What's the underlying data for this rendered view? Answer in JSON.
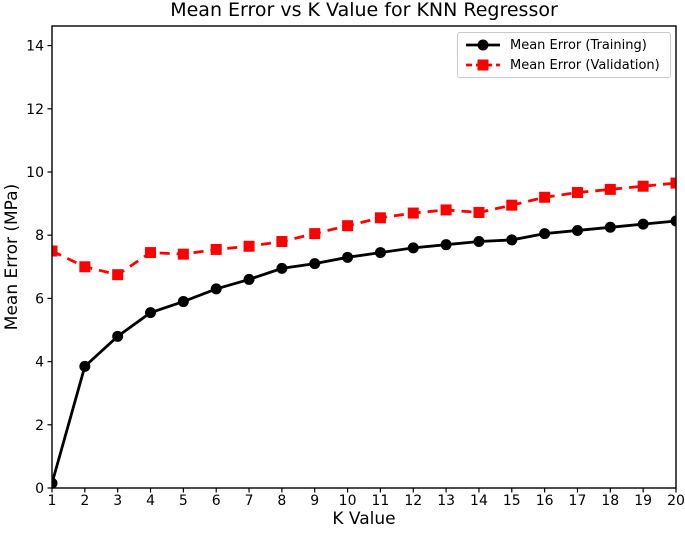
{
  "chart_data": {
    "type": "line",
    "title": "Mean Error vs K Value for KNN Regressor",
    "xlabel": "K Value",
    "ylabel": "Mean Error (MPa)",
    "x": [
      1,
      2,
      3,
      4,
      5,
      6,
      7,
      8,
      9,
      10,
      11,
      12,
      13,
      14,
      15,
      16,
      17,
      18,
      19,
      20
    ],
    "xlim": [
      1,
      20
    ],
    "ylim": [
      0,
      14.62
    ],
    "xticks": [
      1,
      2,
      3,
      4,
      5,
      6,
      7,
      8,
      9,
      10,
      11,
      12,
      13,
      14,
      15,
      16,
      17,
      18,
      19,
      20
    ],
    "yticks": [
      0,
      2,
      4,
      6,
      8,
      10,
      12,
      14
    ],
    "grid": false,
    "legend_position": "upper right",
    "axis_color": "#000000",
    "series": [
      {
        "name": "Mean Error (Training)",
        "color": "#000000",
        "line_style": "solid",
        "marker": "circle",
        "values": [
          0.15,
          3.85,
          4.8,
          5.55,
          5.9,
          6.3,
          6.6,
          6.95,
          7.1,
          7.3,
          7.45,
          7.6,
          7.7,
          7.8,
          7.85,
          8.05,
          8.15,
          8.25,
          8.35,
          8.45
        ]
      },
      {
        "name": "Mean Error (Validation)",
        "color": "#ff0000",
        "line_style": "dashed",
        "marker": "square",
        "values": [
          7.5,
          7.0,
          6.75,
          7.45,
          7.4,
          7.55,
          7.65,
          7.8,
          8.05,
          8.3,
          8.55,
          8.7,
          8.8,
          8.72,
          8.95,
          9.2,
          9.35,
          9.45,
          9.55,
          9.65
        ]
      }
    ]
  }
}
